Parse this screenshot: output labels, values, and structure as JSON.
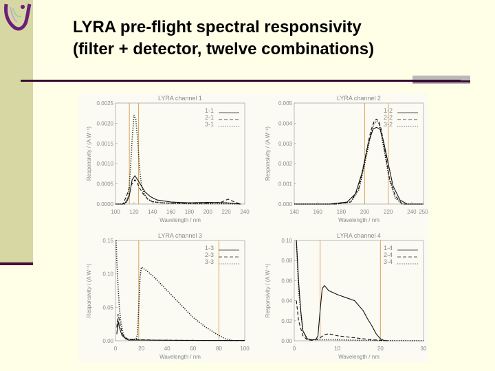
{
  "header": {
    "title_line1": "LYRA pre-flight spectral responsivity",
    "title_line2": "(filter + detector, twelve combinations)"
  },
  "colors": {
    "sidebar": "#d7d7a3",
    "rule": "#3a0a30",
    "logo": "#6b1e7a",
    "marker": "#d9a35a"
  },
  "chart_data": [
    {
      "type": "line",
      "title": "LYRA channel 1",
      "xlabel": "Wavelength / nm",
      "ylabel": "Responsivity / (A W⁻¹)",
      "xlim": [
        100,
        240
      ],
      "ylim": [
        0,
        0.0025
      ],
      "xticks": [
        "100",
        "120",
        "140",
        "160",
        "180",
        "200",
        "220",
        "240"
      ],
      "yticks": [
        "0.0000",
        "0.0005",
        "0.0010",
        "0.0015",
        "0.0020",
        "0.0025"
      ],
      "markers_x": [
        115,
        125
      ],
      "legend": [
        "1-1",
        "2-1",
        "3-1"
      ],
      "series": [
        {
          "name": "1-1",
          "style": "solid",
          "x": [
            100,
            108,
            112,
            115,
            118,
            121,
            124,
            128,
            132,
            138,
            145,
            160,
            180,
            200,
            220,
            236
          ],
          "y": [
            0,
            0,
            5e-05,
            0.0002,
            0.0006,
            0.0007,
            0.0006,
            0.00045,
            0.0003,
            0.00018,
            0.0001,
            5e-05,
            3e-05,
            4e-05,
            3e-05,
            0
          ]
        },
        {
          "name": "2-1",
          "style": "dash",
          "x": [
            100,
            108,
            112,
            115,
            118,
            121,
            123,
            126,
            130,
            135,
            140,
            150,
            160,
            180,
            200,
            215,
            222,
            230,
            236
          ],
          "y": [
            0,
            0,
            0.0002,
            0.0004,
            0.0005,
            0.0006,
            0.00055,
            0.0004,
            0.00025,
            0.00012,
            6e-05,
            3e-05,
            2e-05,
            2e-05,
            2e-05,
            5e-05,
            0.00012,
            4e-05,
            0
          ]
        },
        {
          "name": "3-1",
          "style": "dot",
          "x": [
            100,
            110,
            114,
            116,
            118,
            120,
            122,
            124,
            126,
            128,
            131,
            135,
            140,
            150,
            160,
            180,
            200,
            220,
            236
          ],
          "y": [
            0,
            0,
            0.0002,
            0.0008,
            0.0016,
            0.0022,
            0.0021,
            0.0016,
            0.0009,
            0.0005,
            0.00025,
            0.00012,
            6e-05,
            3e-05,
            2e-05,
            1e-05,
            1e-05,
            1e-05,
            0
          ]
        }
      ]
    },
    {
      "type": "line",
      "title": "LYRA channel 2",
      "xlabel": "Wavelength / nm",
      "ylabel": "Responsivity / (A W⁻¹)",
      "xlim": [
        140,
        250
      ],
      "ylim": [
        0,
        0.005
      ],
      "xticks": [
        "140",
        "160",
        "180",
        "200",
        "220",
        "240",
        "250"
      ],
      "yticks": [
        "0.000",
        "0.001",
        "0.002",
        "0.003",
        "0.004",
        "0.005"
      ],
      "markers_x": [
        200,
        220
      ],
      "legend": [
        "1-2",
        "2-2",
        "3-2"
      ],
      "series": [
        {
          "name": "1-2",
          "style": "solid",
          "x": [
            140,
            170,
            185,
            192,
            198,
            203,
            207,
            210,
            213,
            216,
            220,
            224,
            230,
            236,
            250
          ],
          "y": [
            0,
            0,
            0.0001,
            0.0005,
            0.0016,
            0.003,
            0.0037,
            0.0038,
            0.0037,
            0.0031,
            0.002,
            0.0009,
            0.0002,
            0,
            0
          ]
        },
        {
          "name": "2-2",
          "style": "dash",
          "x": [
            140,
            175,
            188,
            195,
            200,
            205,
            208,
            210,
            212,
            214,
            217,
            221,
            226,
            232,
            250
          ],
          "y": [
            0,
            0,
            0.0001,
            0.0008,
            0.0022,
            0.0036,
            0.0041,
            0.0042,
            0.0041,
            0.0037,
            0.0027,
            0.0013,
            0.0004,
            0,
            0
          ]
        },
        {
          "name": "3-2",
          "style": "dot",
          "x": [
            140,
            175,
            188,
            195,
            200,
            205,
            208,
            210,
            212,
            214,
            217,
            221,
            226,
            232,
            250
          ],
          "y": [
            0,
            0,
            0.0001,
            0.0007,
            0.002,
            0.0034,
            0.004,
            0.0041,
            0.004,
            0.0035,
            0.0025,
            0.0012,
            0.0003,
            0,
            0
          ]
        }
      ]
    },
    {
      "type": "line",
      "title": "LYRA channel 3",
      "xlabel": "Wavelength / nm",
      "ylabel": "Responsivity / (A W⁻¹)",
      "xlim": [
        0,
        100
      ],
      "ylim": [
        0,
        0.15
      ],
      "xticks": [
        "0",
        "20",
        "40",
        "60",
        "80",
        "100"
      ],
      "yticks": [
        "0.00",
        "0.05",
        "0.10",
        "0.15"
      ],
      "markers_x": [
        18,
        80
      ],
      "legend": [
        "1-3",
        "2-3",
        "3-3"
      ],
      "series": [
        {
          "name": "1-3",
          "style": "solid",
          "x": [
            1,
            2,
            3,
            5,
            8,
            10,
            12,
            15,
            17,
            20,
            30,
            50,
            70,
            90,
            100
          ],
          "y": [
            0.01,
            0.03,
            0.02,
            0.008,
            0.003,
            0.001,
            0.001,
            0.001,
            0.001,
            0.001,
            0.0008,
            0.0006,
            0.0005,
            0.0004,
            0.0004
          ]
        },
        {
          "name": "2-3",
          "style": "dash",
          "x": [
            1,
            2,
            4,
            6,
            9,
            12,
            15,
            18,
            20,
            30,
            40,
            60,
            80,
            100
          ],
          "y": [
            0.02,
            0.04,
            0.02,
            0.008,
            0.003,
            0.002,
            0.002,
            0.0015,
            0.0015,
            0.001,
            0.0008,
            0.0005,
            0.0004,
            0.0003
          ]
        },
        {
          "name": "3-3",
          "style": "dot",
          "x": [
            0.5,
            1,
            2,
            3,
            4,
            6,
            8,
            10,
            12,
            14,
            16,
            17,
            18,
            19,
            20,
            24,
            30,
            40,
            50,
            60,
            70,
            80,
            85,
            90
          ],
          "y": [
            0.15,
            0.12,
            0.08,
            0.05,
            0.03,
            0.01,
            0.003,
            0.002,
            0.002,
            0.002,
            0.003,
            0.01,
            0.05,
            0.095,
            0.11,
            0.105,
            0.095,
            0.075,
            0.055,
            0.035,
            0.02,
            0.008,
            0.003,
            0.001
          ]
        }
      ]
    },
    {
      "type": "line",
      "title": "LYRA channel 4",
      "xlabel": "Wavelength / nm",
      "ylabel": "Responsivity / (A W⁻¹)",
      "xlim": [
        0,
        30
      ],
      "ylim": [
        0,
        0.1
      ],
      "xticks": [
        "0",
        "10",
        "20",
        "30"
      ],
      "yticks": [
        "0.00",
        "0.02",
        "0.04",
        "0.06",
        "0.08",
        "0.10"
      ],
      "markers_x": [
        6,
        20
      ],
      "legend": [
        "1-4",
        "2-4",
        "3-4"
      ],
      "series": [
        {
          "name": "1-4",
          "style": "solid",
          "x": [
            0.5,
            1,
            1.5,
            2,
            3,
            4,
            5,
            5.5,
            6,
            6.5,
            7,
            8,
            10,
            12,
            14,
            16,
            17,
            18,
            19,
            20,
            21
          ],
          "y": [
            0.1,
            0.06,
            0.03,
            0.01,
            0.002,
            0.001,
            0.001,
            0.005,
            0.03,
            0.052,
            0.055,
            0.05,
            0.046,
            0.043,
            0.04,
            0.03,
            0.022,
            0.015,
            0.007,
            0.002,
            0
          ]
        },
        {
          "name": "2-4",
          "style": "dash",
          "x": [
            0.5,
            1,
            2,
            3,
            4,
            5,
            6,
            7,
            8,
            10,
            12,
            14,
            16,
            18,
            20,
            22
          ],
          "y": [
            0.04,
            0.02,
            0.005,
            0.001,
            0.0005,
            0.001,
            0.003,
            0.006,
            0.007,
            0.005,
            0.004,
            0.003,
            0.002,
            0.001,
            0.0005,
            0
          ]
        },
        {
          "name": "3-4",
          "style": "dot",
          "x": [
            0.5,
            1,
            2,
            3,
            4,
            5,
            6,
            8,
            10,
            15,
            20,
            25,
            30
          ],
          "y": [
            0.1,
            0.05,
            0.01,
            0.002,
            0.001,
            0.001,
            0.001,
            0.001,
            0.001,
            0.0005,
            0.0003,
            0.0002,
            0.0001
          ]
        }
      ]
    }
  ]
}
